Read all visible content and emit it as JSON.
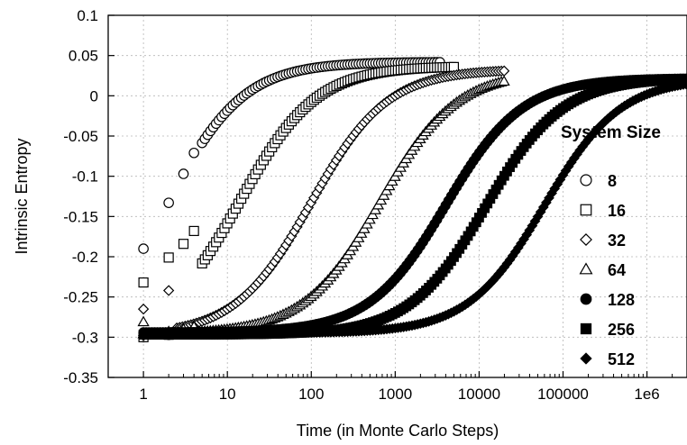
{
  "chart_data": {
    "type": "scatter",
    "title": "",
    "xlabel": "Time (in Monte Carlo Steps)",
    "ylabel": "Intrinsic Entropy",
    "xscale": "log",
    "xlim": [
      0.38,
      3000000
    ],
    "ylim": [
      -0.35,
      0.1
    ],
    "grid": true,
    "x_tick_labels": [
      "1",
      "10",
      "100",
      "1000",
      "10000",
      "100000",
      "1e6"
    ],
    "x_tick_values": [
      1,
      10,
      100,
      1000,
      10000,
      100000,
      1000000
    ],
    "y_tick_labels": [
      "0.1",
      "0.05",
      "0",
      "-0.05",
      "-0.1",
      "-0.15",
      "-0.2",
      "-0.25",
      "-0.3",
      "-0.35"
    ],
    "y_tick_values": [
      0.1,
      0.05,
      0,
      -0.05,
      -0.1,
      -0.15,
      -0.2,
      -0.25,
      -0.3,
      -0.35
    ],
    "legend": {
      "title": "System Size",
      "placement": "right"
    },
    "series": [
      {
        "name": "8",
        "marker": "circle-open",
        "t": 2,
        "y_start": -0.3,
        "y_end": 0.042,
        "points": [
          [
            1,
            -0.19
          ],
          [
            2,
            -0.133
          ],
          [
            3,
            -0.097
          ],
          [
            4,
            -0.071
          ]
        ]
      },
      {
        "name": "16",
        "marker": "square-open",
        "t": 14,
        "y_start": -0.3,
        "y_end": 0.037,
        "points": [
          [
            1,
            -0.232
          ],
          [
            2,
            -0.201
          ],
          [
            3,
            -0.184
          ],
          [
            4,
            -0.168
          ]
        ]
      },
      {
        "name": "32",
        "marker": "diamond-open",
        "t": 100,
        "y_start": -0.298,
        "y_end": 0.033,
        "points": [
          [
            1,
            -0.265
          ],
          [
            2,
            -0.242
          ]
        ]
      },
      {
        "name": "64",
        "marker": "triangle-open",
        "t": 650,
        "y_start": -0.296,
        "y_end": 0.03,
        "points": [
          [
            1,
            -0.281
          ]
        ]
      },
      {
        "name": "128",
        "marker": "circle-filled",
        "t": 4000,
        "y_start": -0.294,
        "y_end": 0.022,
        "points": []
      },
      {
        "name": "256",
        "marker": "square-filled",
        "t": 12000,
        "y_start": -0.297,
        "y_end": 0.022,
        "points": []
      },
      {
        "name": "512",
        "marker": "diamond-filled",
        "t": 60000,
        "y_start": -0.295,
        "y_end": 0.022,
        "points": []
      }
    ]
  }
}
